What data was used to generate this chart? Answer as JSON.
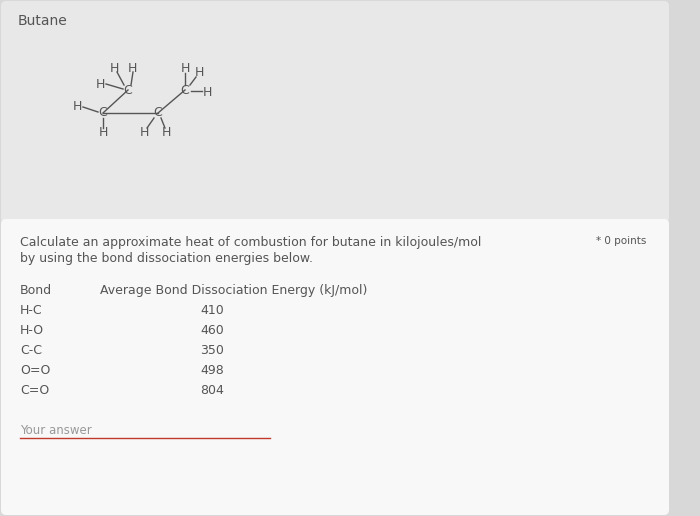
{
  "title_top": "Butane",
  "question_text_line1": "Calculate an approximate heat of combustion for butane in kilojoules/mol",
  "question_text_line2": "by using the bond dissociation energies below.",
  "points_label": "* 0 points",
  "table_header_col1": "Bond",
  "table_header_col2": "Average Bond Dissociation Energy (kJ/mol)",
  "bonds": [
    "H-C",
    "H-O",
    "C-C",
    "O=O",
    "C=O"
  ],
  "energies": [
    "410",
    "460",
    "350",
    "498",
    "804"
  ],
  "your_answer_label": "Your answer",
  "bg_outer": "#d8d8d8",
  "bg_top_card": "#e8e8e8",
  "bg_bottom_card": "#f8f8f8",
  "text_color": "#555555",
  "line_color": "#c0392b",
  "font_size_title": 10,
  "font_size_body": 9,
  "font_size_table": 9,
  "font_size_points": 7.5,
  "font_size_mol": 9
}
